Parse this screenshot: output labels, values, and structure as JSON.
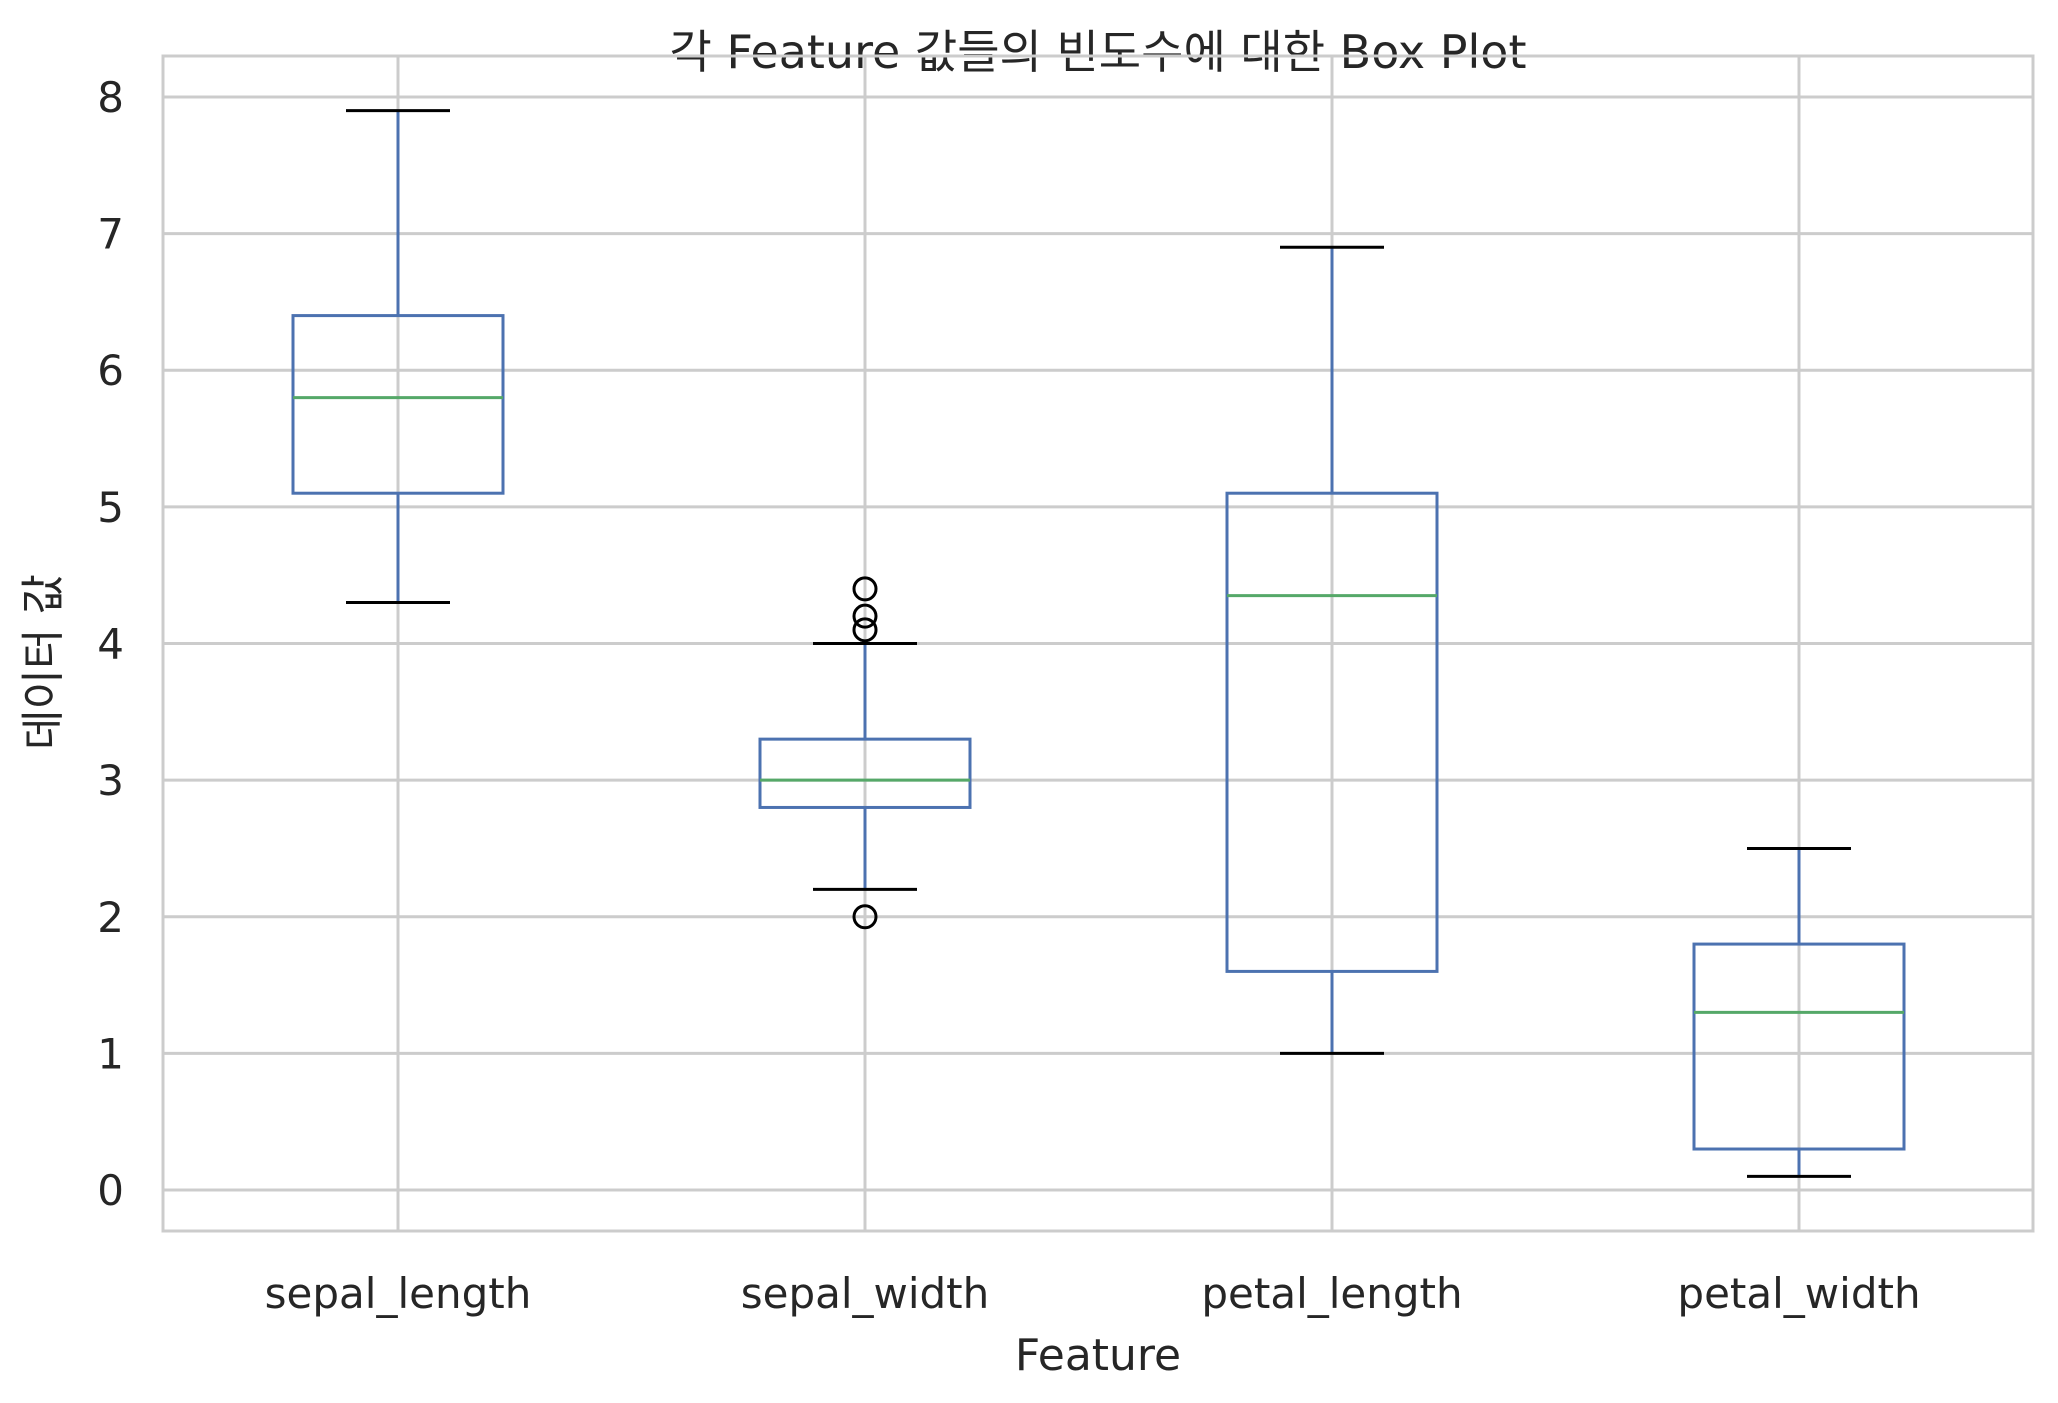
{
  "chart_data": {
    "type": "box",
    "title": "각 Feature 값들의 빈도수에 대한 Box Plot",
    "xlabel": "Feature",
    "ylabel": "데이터 값",
    "ylim": [
      -0.3,
      8.3
    ],
    "yticks": [
      "0",
      "1",
      "2",
      "3",
      "4",
      "5",
      "6",
      "7",
      "8"
    ],
    "grid": true,
    "categories": [
      "sepal_length",
      "sepal_width",
      "petal_length",
      "petal_width"
    ],
    "boxes": [
      {
        "whisker_low": 4.3,
        "q1": 5.1,
        "median": 5.8,
        "q3": 6.4,
        "whisker_high": 7.9,
        "outliers": []
      },
      {
        "whisker_low": 2.2,
        "q1": 2.8,
        "median": 3.0,
        "q3": 3.3,
        "whisker_high": 4.0,
        "outliers": [
          4.4,
          4.2,
          4.1,
          2.0
        ]
      },
      {
        "whisker_low": 1.0,
        "q1": 1.6,
        "median": 4.35,
        "q3": 5.1,
        "whisker_high": 6.9,
        "outliers": []
      },
      {
        "whisker_low": 0.1,
        "q1": 0.3,
        "median": 1.3,
        "q3": 1.8,
        "whisker_high": 2.5,
        "outliers": []
      }
    ],
    "colors": {
      "box": "#4c72b0",
      "median": "#55a868",
      "whisker_cap": "#000000",
      "grid": "#cccccc",
      "frame": "#cccccc"
    }
  }
}
